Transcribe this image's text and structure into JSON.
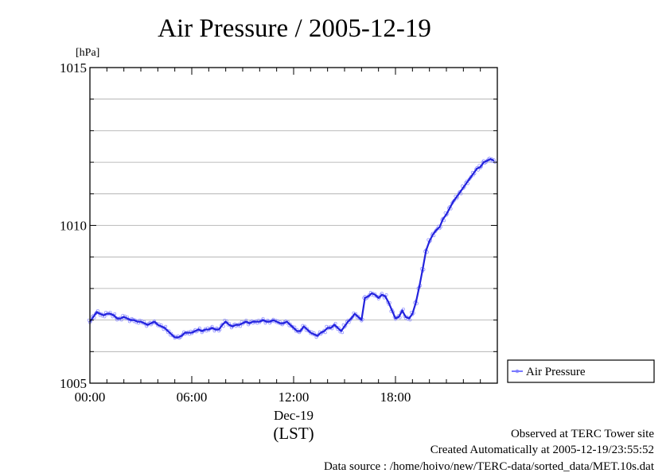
{
  "chart_data": {
    "type": "line",
    "title": "Air Pressure / 2005-12-19",
    "ylabel": "[hPa]",
    "xlabel_date": "Dec-19",
    "xlabel_zone": "(LST)",
    "ylim": [
      1005,
      1015
    ],
    "xlim_hours": [
      0,
      24
    ],
    "y_ticks": [
      "1005",
      "1010",
      "1015"
    ],
    "y_tick_values": [
      1005,
      1010,
      1015
    ],
    "x_ticks": [
      "00:00",
      "06:00",
      "12:00",
      "18:00"
    ],
    "x_tick_hours": [
      0,
      6,
      12,
      18
    ],
    "grid": true,
    "legend_position": "right",
    "series": [
      {
        "name": "Air Pressure",
        "color": "#4b4bff",
        "x_hours": [
          0.0,
          0.2,
          0.4,
          0.6,
          0.8,
          1.0,
          1.2,
          1.4,
          1.6,
          1.8,
          2.0,
          2.2,
          2.4,
          2.6,
          2.8,
          3.0,
          3.2,
          3.4,
          3.6,
          3.8,
          4.0,
          4.2,
          4.4,
          4.6,
          4.8,
          5.0,
          5.2,
          5.4,
          5.6,
          5.8,
          6.0,
          6.2,
          6.4,
          6.6,
          6.8,
          7.0,
          7.2,
          7.4,
          7.6,
          7.8,
          8.0,
          8.2,
          8.4,
          8.6,
          8.8,
          9.0,
          9.2,
          9.4,
          9.6,
          9.8,
          10.0,
          10.2,
          10.4,
          10.6,
          10.8,
          11.0,
          11.2,
          11.4,
          11.6,
          11.8,
          12.0,
          12.2,
          12.4,
          12.6,
          12.8,
          13.0,
          13.2,
          13.4,
          13.6,
          13.8,
          14.0,
          14.2,
          14.4,
          14.6,
          14.8,
          15.0,
          15.2,
          15.4,
          15.6,
          15.8,
          16.0,
          16.2,
          16.4,
          16.6,
          16.8,
          17.0,
          17.2,
          17.4,
          17.6,
          17.8,
          18.0,
          18.2,
          18.4,
          18.6,
          18.8,
          19.0,
          19.2,
          19.4,
          19.6,
          19.8,
          20.0,
          20.2,
          20.4,
          20.6,
          20.8,
          21.0,
          21.2,
          21.4,
          21.6,
          21.8,
          22.0,
          22.2,
          22.4,
          22.6,
          22.8,
          23.0,
          23.2,
          23.4,
          23.6,
          23.8
        ],
        "values": [
          1006.95,
          1007.1,
          1007.25,
          1007.2,
          1007.15,
          1007.2,
          1007.2,
          1007.15,
          1007.05,
          1007.05,
          1007.1,
          1007.05,
          1007.0,
          1007.0,
          1006.95,
          1006.95,
          1006.9,
          1006.85,
          1006.9,
          1006.95,
          1006.85,
          1006.8,
          1006.75,
          1006.65,
          1006.55,
          1006.45,
          1006.45,
          1006.5,
          1006.6,
          1006.6,
          1006.6,
          1006.65,
          1006.7,
          1006.65,
          1006.7,
          1006.7,
          1006.75,
          1006.7,
          1006.7,
          1006.85,
          1006.95,
          1006.85,
          1006.8,
          1006.85,
          1006.85,
          1006.9,
          1006.95,
          1006.9,
          1006.95,
          1006.95,
          1006.95,
          1007.0,
          1006.95,
          1006.95,
          1007.0,
          1006.95,
          1006.9,
          1006.9,
          1006.95,
          1006.85,
          1006.75,
          1006.65,
          1006.65,
          1006.8,
          1006.7,
          1006.6,
          1006.55,
          1006.5,
          1006.6,
          1006.65,
          1006.75,
          1006.75,
          1006.85,
          1006.75,
          1006.65,
          1006.8,
          1006.95,
          1007.05,
          1007.2,
          1007.1,
          1007.0,
          1007.7,
          1007.75,
          1007.85,
          1007.8,
          1007.7,
          1007.8,
          1007.75,
          1007.55,
          1007.3,
          1007.05,
          1007.1,
          1007.3,
          1007.1,
          1007.05,
          1007.2,
          1007.55,
          1008.05,
          1008.6,
          1009.2,
          1009.5,
          1009.7,
          1009.85,
          1009.95,
          1010.2,
          1010.35,
          1010.55,
          1010.75,
          1010.9,
          1011.05,
          1011.2,
          1011.35,
          1011.5,
          1011.65,
          1011.8,
          1011.85,
          1012.0,
          1012.05,
          1012.1,
          1012.05
        ]
      }
    ]
  },
  "footer": {
    "line1": "Observed at TERC Tower site",
    "line2": "Created Automatically at 2005-12-19/23:55:52",
    "line3": "Data source : /home/hoivo/new/TERC-data/sorted_data/MET.10s.dat"
  }
}
